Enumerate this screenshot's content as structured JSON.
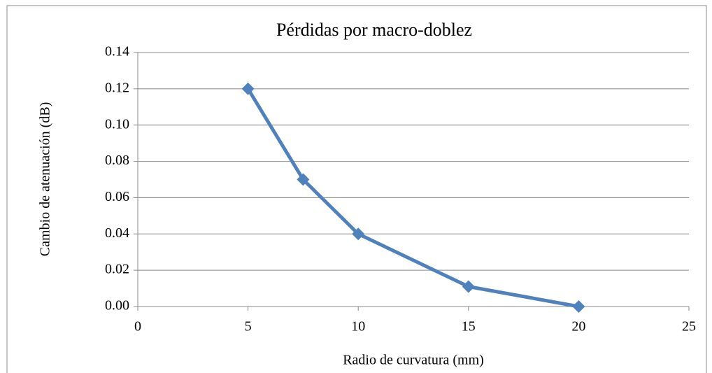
{
  "chart_data": {
    "type": "line",
    "title": "Pérdidas por macro-doblez",
    "xlabel": "Radio de curvatura (mm)",
    "ylabel": "Cambio de atenuación (dB)",
    "x": [
      5,
      7.5,
      10,
      15,
      20
    ],
    "series": [
      {
        "name": "Cambio de atenuación",
        "color": "#4f81bd",
        "values": [
          0.12,
          0.07,
          0.04,
          0.011,
          0
        ]
      }
    ],
    "xlim": [
      0,
      25
    ],
    "xticks": [
      0,
      5,
      10,
      15,
      20,
      25
    ],
    "ylim": [
      0,
      0.14
    ],
    "yticks": [
      {
        "value": 0,
        "label": "0.00"
      },
      {
        "value": 0.02,
        "label": "0.02"
      },
      {
        "value": 0.04,
        "label": "0.04"
      },
      {
        "value": 0.06,
        "label": "0.06"
      },
      {
        "value": 0.08,
        "label": "0.08"
      },
      {
        "value": 0.1,
        "label": "0.10"
      },
      {
        "value": 0.12,
        "label": "0.12"
      },
      {
        "value": 0.14,
        "label": "0.14"
      }
    ],
    "grid": true
  }
}
